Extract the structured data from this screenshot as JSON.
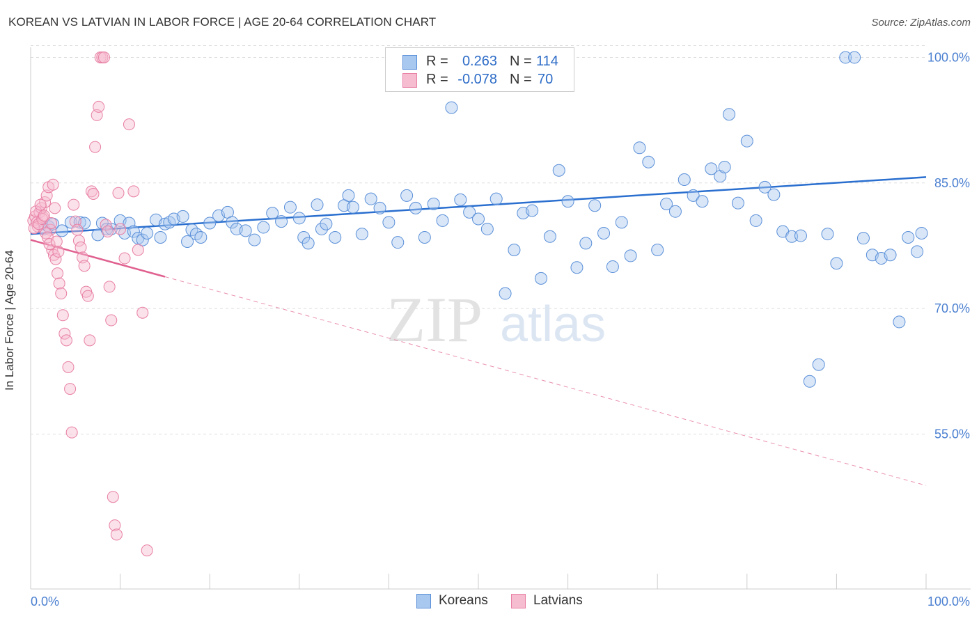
{
  "title": "KOREAN VS LATVIAN IN LABOR FORCE | AGE 20-64 CORRELATION CHART",
  "source": "Source: ZipAtlas.com",
  "colors": {
    "korean_fill": "#a9c8f0",
    "korean_stroke": "#5a8fd8",
    "korean_line": "#2a6fcf",
    "latvian_fill": "#f6bcd0",
    "latvian_stroke": "#e87fa4",
    "latvian_line": "#e0608f",
    "tick_text": "#4a7fd0",
    "grid": "#dddddd"
  },
  "legend": {
    "rows": [
      {
        "r_label": "R =",
        "r_value": "0.263",
        "n_label": "N =",
        "n_value": "114"
      },
      {
        "r_label": "R =",
        "r_value": "-0.078",
        "n_label": "N =",
        "n_value": "70"
      }
    ],
    "series": [
      "Koreans",
      "Latvians"
    ]
  },
  "watermark": {
    "zip": "ZIP",
    "atlas": "atlas"
  },
  "chart_data": {
    "type": "scatter",
    "title": "KOREAN VS LATVIAN IN LABOR FORCE | AGE 20-64 CORRELATION CHART",
    "xlabel": "",
    "ylabel": "In Labor Force | Age 20-64",
    "x_tick_labels": [
      "0.0%",
      "100.0%"
    ],
    "y_tick_labels": [
      "100.0%",
      "85.0%",
      "70.0%",
      "55.0%"
    ],
    "y_ticks": [
      100,
      85,
      70,
      55
    ],
    "xlim": [
      0,
      100
    ],
    "ylim": [
      36.5,
      101.7
    ],
    "grid": true,
    "legend_position": "top-center",
    "series": [
      {
        "name": "Koreans",
        "trend": {
          "x": [
            0,
            100
          ],
          "y": [
            78.9,
            85.7
          ]
        },
        "points": [
          [
            1.5,
            79.5
          ],
          [
            2,
            79.8
          ],
          [
            2.5,
            80.1
          ],
          [
            3.5,
            79.3
          ],
          [
            4.5,
            80.3
          ],
          [
            5.5,
            80.3
          ],
          [
            6,
            80.2
          ],
          [
            7.5,
            78.8
          ],
          [
            8,
            80.2
          ],
          [
            8.5,
            79.5
          ],
          [
            9,
            79.5
          ],
          [
            10,
            80.5
          ],
          [
            10.5,
            79.0
          ],
          [
            11,
            80.2
          ],
          [
            11.5,
            79.2
          ],
          [
            12,
            78.4
          ],
          [
            12.5,
            78.2
          ],
          [
            13,
            79.0
          ],
          [
            14,
            80.6
          ],
          [
            14.5,
            78.5
          ],
          [
            15,
            80.1
          ],
          [
            15.5,
            80.3
          ],
          [
            16,
            80.7
          ],
          [
            17,
            81.0
          ],
          [
            17.5,
            78.0
          ],
          [
            18,
            79.4
          ],
          [
            18.5,
            78.9
          ],
          [
            19,
            78.5
          ],
          [
            20,
            80.2
          ],
          [
            21,
            81.1
          ],
          [
            22,
            81.5
          ],
          [
            22.5,
            80.3
          ],
          [
            23,
            79.5
          ],
          [
            24,
            79.3
          ],
          [
            25,
            78.2
          ],
          [
            26,
            79.7
          ],
          [
            27,
            81.4
          ],
          [
            28,
            80.4
          ],
          [
            29,
            82.1
          ],
          [
            30,
            80.8
          ],
          [
            30.5,
            78.5
          ],
          [
            31,
            77.8
          ],
          [
            32,
            82.4
          ],
          [
            32.5,
            79.5
          ],
          [
            33,
            80.1
          ],
          [
            34,
            78.5
          ],
          [
            35,
            82.3
          ],
          [
            35.5,
            83.5
          ],
          [
            36,
            82.1
          ],
          [
            37,
            78.9
          ],
          [
            38,
            83.1
          ],
          [
            39,
            82.0
          ],
          [
            40,
            80.3
          ],
          [
            41,
            77.9
          ],
          [
            42,
            83.5
          ],
          [
            43,
            82.0
          ],
          [
            44,
            78.5
          ],
          [
            45,
            82.5
          ],
          [
            46,
            80.5
          ],
          [
            47,
            94.0
          ],
          [
            48,
            83.0
          ],
          [
            49,
            81.5
          ],
          [
            50,
            80.7
          ],
          [
            51,
            79.5
          ],
          [
            52,
            83.1
          ],
          [
            53,
            71.8
          ],
          [
            54,
            77.0
          ],
          [
            55,
            81.4
          ],
          [
            56,
            81.7
          ],
          [
            57,
            73.6
          ],
          [
            58,
            78.6
          ],
          [
            59,
            86.5
          ],
          [
            60,
            82.8
          ],
          [
            61,
            74.9
          ],
          [
            62,
            77.8
          ],
          [
            63,
            82.3
          ],
          [
            64,
            79.0
          ],
          [
            65,
            75.0
          ],
          [
            66,
            80.3
          ],
          [
            67,
            76.3
          ],
          [
            68,
            89.2
          ],
          [
            69,
            87.5
          ],
          [
            70,
            77.0
          ],
          [
            71,
            82.5
          ],
          [
            72,
            81.6
          ],
          [
            73,
            85.4
          ],
          [
            74,
            83.5
          ],
          [
            75,
            82.8
          ],
          [
            76,
            86.7
          ],
          [
            77,
            85.8
          ],
          [
            77.5,
            86.9
          ],
          [
            78,
            93.2
          ],
          [
            79,
            82.6
          ],
          [
            80,
            90.0
          ],
          [
            81,
            80.5
          ],
          [
            82,
            84.5
          ],
          [
            83,
            83.6
          ],
          [
            84,
            79.2
          ],
          [
            85,
            78.6
          ],
          [
            86,
            78.7
          ],
          [
            87,
            61.3
          ],
          [
            88,
            63.3
          ],
          [
            89,
            78.9
          ],
          [
            90,
            75.4
          ],
          [
            91,
            100
          ],
          [
            92,
            100
          ],
          [
            93,
            78.4
          ],
          [
            94,
            76.4
          ],
          [
            95,
            76.0
          ],
          [
            96,
            76.4
          ],
          [
            97,
            68.4
          ],
          [
            98,
            78.5
          ],
          [
            99,
            76.8
          ],
          [
            99.5,
            79.0
          ]
        ]
      },
      {
        "name": "Latvians",
        "trend": {
          "x": [
            0,
            15
          ],
          "y": [
            78.2,
            73.8
          ]
        },
        "points": [
          [
            0.3,
            80.5
          ],
          [
            0.5,
            81.0
          ],
          [
            0.7,
            80.3
          ],
          [
            0.8,
            79.8
          ],
          [
            1.0,
            81.5
          ],
          [
            1.2,
            82.0
          ],
          [
            1.4,
            80.9
          ],
          [
            1.6,
            82.7
          ],
          [
            1.8,
            83.5
          ],
          [
            2.0,
            84.5
          ],
          [
            2.2,
            79.4
          ],
          [
            2.4,
            77.0
          ],
          [
            2.6,
            76.4
          ],
          [
            2.8,
            75.9
          ],
          [
            3.0,
            74.2
          ],
          [
            3.2,
            73.0
          ],
          [
            3.4,
            71.8
          ],
          [
            3.6,
            69.2
          ],
          [
            3.8,
            67.0
          ],
          [
            4.0,
            66.2
          ],
          [
            4.2,
            63.0
          ],
          [
            4.4,
            60.4
          ],
          [
            4.6,
            55.2
          ],
          [
            4.8,
            82.4
          ],
          [
            5.0,
            80.4
          ],
          [
            5.2,
            79.4
          ],
          [
            5.4,
            78.1
          ],
          [
            5.6,
            77.3
          ],
          [
            5.8,
            76.1
          ],
          [
            6.0,
            75.1
          ],
          [
            6.2,
            72.0
          ],
          [
            6.4,
            71.5
          ],
          [
            6.6,
            66.2
          ],
          [
            6.8,
            84.0
          ],
          [
            7.0,
            83.7
          ],
          [
            7.2,
            89.3
          ],
          [
            7.4,
            93.1
          ],
          [
            7.6,
            94.1
          ],
          [
            7.8,
            100
          ],
          [
            8.0,
            100
          ],
          [
            8.2,
            100
          ],
          [
            8.4,
            80.0
          ],
          [
            8.6,
            79.2
          ],
          [
            8.8,
            72.6
          ],
          [
            9.0,
            68.6
          ],
          [
            9.2,
            47.5
          ],
          [
            9.4,
            44.1
          ],
          [
            9.6,
            43.0
          ],
          [
            9.8,
            83.8
          ],
          [
            10.0,
            79.5
          ],
          [
            10.5,
            76.0
          ],
          [
            11.0,
            92.0
          ],
          [
            11.5,
            84.0
          ],
          [
            12.0,
            77.0
          ],
          [
            12.5,
            69.5
          ],
          [
            13.0,
            41.1
          ],
          [
            0.4,
            79.6
          ],
          [
            0.6,
            81.6
          ],
          [
            0.9,
            80.1
          ],
          [
            1.1,
            82.4
          ],
          [
            1.3,
            80.7
          ],
          [
            1.5,
            81.1
          ],
          [
            1.7,
            79.0
          ],
          [
            1.9,
            78.5
          ],
          [
            2.1,
            77.7
          ],
          [
            2.3,
            80.2
          ],
          [
            2.5,
            84.8
          ],
          [
            2.7,
            82.0
          ],
          [
            2.9,
            78.0
          ],
          [
            3.1,
            76.8
          ]
        ]
      }
    ]
  }
}
